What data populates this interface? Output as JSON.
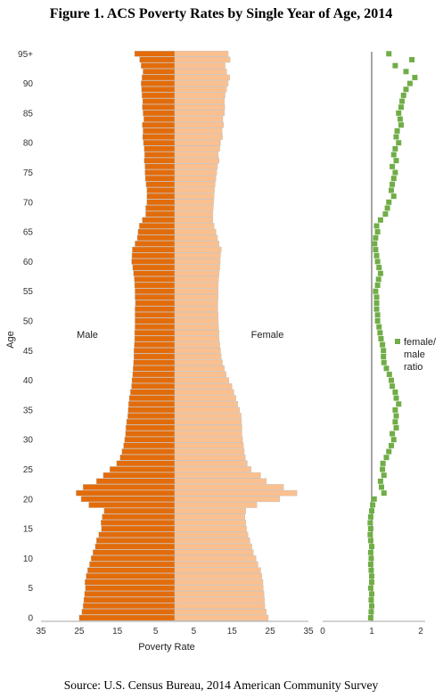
{
  "title": "Figure 1. ACS Poverty Rates by Single Year of Age, 2014",
  "source": "Source: U.S. Census Bureau, 2014 American Community Survey",
  "colors": {
    "male": "#e36c0a",
    "female": "#fac090",
    "ratio": "#70ad47",
    "axis": "#a6a6a6"
  },
  "chart_data": [
    {
      "type": "bar",
      "subtype": "population-pyramid",
      "ylabel": "Age",
      "xlabel": "Poverty Rate",
      "side_labels": {
        "left": "Male",
        "right": "Female"
      },
      "age_tick_labels": [
        "0",
        "5",
        "10",
        "15",
        "20",
        "25",
        "30",
        "35",
        "40",
        "45",
        "50",
        "55",
        "60",
        "65",
        "70",
        "75",
        "80",
        "85",
        "90",
        "95+"
      ],
      "x_tick_labels": [
        "35",
        "25",
        "15",
        "5",
        "5",
        "15",
        "25",
        "35"
      ],
      "xlim": [
        -35,
        35
      ],
      "ages": [
        0,
        1,
        2,
        3,
        4,
        5,
        6,
        7,
        8,
        9,
        10,
        11,
        12,
        13,
        14,
        15,
        16,
        17,
        18,
        19,
        20,
        21,
        22,
        23,
        24,
        25,
        26,
        27,
        28,
        29,
        30,
        31,
        32,
        33,
        34,
        35,
        36,
        37,
        38,
        39,
        40,
        41,
        42,
        43,
        44,
        45,
        46,
        47,
        48,
        49,
        50,
        51,
        52,
        53,
        54,
        55,
        56,
        57,
        58,
        59,
        60,
        61,
        62,
        63,
        64,
        65,
        66,
        67,
        68,
        69,
        70,
        71,
        72,
        73,
        74,
        75,
        76,
        77,
        78,
        79,
        80,
        81,
        82,
        83,
        84,
        85,
        86,
        87,
        88,
        89,
        90,
        91,
        92,
        93,
        94,
        95
      ],
      "series": [
        {
          "name": "Male",
          "values": [
            25.0,
            24.3,
            24.0,
            23.8,
            23.6,
            23.4,
            23.5,
            23.2,
            22.8,
            22.3,
            21.9,
            21.4,
            20.8,
            20.5,
            19.9,
            19.2,
            19.3,
            19.0,
            18.5,
            22.5,
            24.5,
            25.8,
            24.0,
            20.5,
            18.7,
            17.0,
            15.2,
            14.3,
            13.8,
            13.4,
            13.1,
            12.9,
            12.8,
            12.6,
            12.3,
            12.2,
            12.1,
            11.9,
            11.6,
            11.3,
            11.2,
            11.0,
            10.9,
            10.8,
            10.7,
            10.7,
            10.6,
            10.5,
            10.5,
            10.4,
            10.4,
            10.4,
            10.4,
            10.3,
            10.4,
            10.4,
            10.5,
            10.6,
            10.8,
            11.0,
            11.3,
            11.2,
            11.1,
            10.4,
            9.8,
            9.6,
            9.3,
            8.5,
            7.6,
            7.6,
            7.3,
            7.3,
            7.3,
            7.5,
            7.7,
            7.8,
            7.8,
            8.0,
            7.9,
            8.0,
            8.2,
            8.4,
            8.3,
            8.5,
            8.1,
            8.3,
            8.5,
            8.4,
            8.6,
            8.7,
            8.8,
            8.6,
            8.3,
            8.8,
            9.2,
            10.5
          ]
        },
        {
          "name": "Female",
          "values": [
            24.5,
            24.0,
            23.6,
            23.5,
            23.4,
            23.2,
            23.1,
            22.8,
            22.5,
            21.8,
            21.3,
            20.6,
            20.2,
            19.7,
            19.2,
            18.8,
            18.6,
            18.4,
            18.6,
            21.5,
            27.5,
            32.0,
            28.5,
            24.0,
            22.5,
            20.0,
            19.0,
            18.5,
            18.2,
            18.0,
            17.8,
            17.6,
            17.6,
            17.5,
            17.4,
            17.0,
            16.5,
            16.0,
            15.5,
            15.0,
            14.2,
            13.5,
            13.0,
            12.5,
            12.2,
            12.0,
            11.8,
            11.6,
            11.6,
            11.5,
            11.4,
            11.4,
            11.3,
            11.3,
            11.4,
            11.4,
            11.4,
            11.5,
            11.6,
            11.8,
            11.9,
            12.0,
            12.2,
            11.6,
            11.2,
            10.8,
            10.3,
            10.0,
            10.0,
            10.1,
            10.2,
            10.3,
            10.4,
            10.6,
            10.8,
            11.0,
            11.2,
            11.6,
            11.4,
            11.8,
            12.0,
            12.5,
            12.4,
            12.8,
            12.6,
            13.0,
            13.1,
            13.0,
            13.2,
            13.6,
            14.0,
            14.4,
            13.6,
            13.2,
            14.5,
            14.0
          ]
        }
      ]
    },
    {
      "type": "scatter",
      "legend": [
        "female/",
        "male",
        "ratio"
      ],
      "legend_position": "middle-right",
      "x_tick_labels": [
        "0",
        "1",
        "2"
      ],
      "xlim": [
        0,
        2
      ],
      "reference_line_x": 1,
      "series": [
        {
          "name": "female/ male ratio",
          "x": [
            0.98,
            0.99,
            1.0,
            0.99,
            1.0,
            0.98,
            1.0,
            1.0,
            0.99,
            0.98,
            0.99,
            0.98,
            1.0,
            0.98,
            0.97,
            0.98,
            0.97,
            0.98,
            1.0,
            1.02,
            1.05,
            1.25,
            1.2,
            1.18,
            1.25,
            1.22,
            1.23,
            1.3,
            1.35,
            1.4,
            1.45,
            1.42,
            1.5,
            1.48,
            1.5,
            1.48,
            1.55,
            1.5,
            1.48,
            1.42,
            1.4,
            1.36,
            1.3,
            1.25,
            1.24,
            1.24,
            1.22,
            1.19,
            1.17,
            1.15,
            1.12,
            1.12,
            1.1,
            1.1,
            1.1,
            1.08,
            1.12,
            1.14,
            1.18,
            1.15,
            1.12,
            1.1,
            1.08,
            1.06,
            1.08,
            1.12,
            1.1,
            1.18,
            1.28,
            1.32,
            1.35,
            1.45,
            1.4,
            1.42,
            1.45,
            1.48,
            1.42,
            1.5,
            1.45,
            1.48,
            1.55,
            1.5,
            1.52,
            1.6,
            1.58,
            1.55,
            1.6,
            1.62,
            1.65,
            1.7,
            1.78,
            1.88,
            1.7,
            1.48,
            1.82,
            1.35
          ]
        }
      ]
    }
  ]
}
